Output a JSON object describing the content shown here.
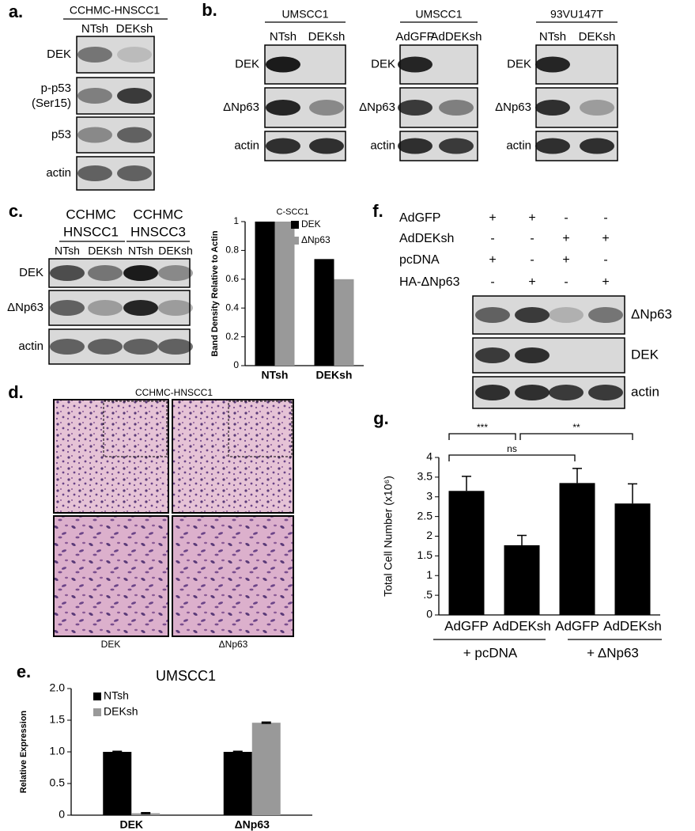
{
  "panels": {
    "a": {
      "label": "a.",
      "title": "CCHMC-HNSCC1",
      "lanes": [
        "NTsh",
        "DEKsh"
      ],
      "rows": [
        {
          "label": "DEK"
        },
        {
          "label": "p-p53",
          "sublabel": "(Ser15)"
        },
        {
          "label": "p53"
        },
        {
          "label": "actin"
        }
      ]
    },
    "b": {
      "label": "b.",
      "blots": [
        {
          "title": "UMSCC1",
          "lanes": [
            "NTsh",
            "DEKsh"
          ],
          "rows": [
            "DEK",
            "ΔNp63",
            "actin"
          ]
        },
        {
          "title": "UMSCC1",
          "lanes": [
            "AdGFP",
            "AdDEKsh"
          ],
          "rows": [
            "DEK",
            "ΔNp63",
            "actin"
          ]
        },
        {
          "title": "93VU147T",
          "lanes": [
            "NTsh",
            "DEKsh"
          ],
          "rows": [
            "DEK",
            "ΔNp63",
            "actin"
          ]
        }
      ]
    },
    "c": {
      "label": "c.",
      "groups": [
        {
          "line1": "CCHMC",
          "line2": "HNSCC1"
        },
        {
          "line1": "CCHMC",
          "line2": "HNSCC3"
        }
      ],
      "lanes": [
        "NTsh",
        "DEKsh",
        "NTsh",
        "DEKsh"
      ],
      "rows": [
        "DEK",
        "ΔNp63",
        "actin"
      ]
    },
    "d": {
      "label": "d.",
      "title": "CCHMC-HNSCC1",
      "captions": [
        "DEK",
        "ΔNp63"
      ]
    },
    "e": {
      "label": "e."
    },
    "f": {
      "label": "f.",
      "conditions": [
        {
          "name": "AdGFP",
          "signs": [
            "+",
            "+",
            "-",
            "-"
          ]
        },
        {
          "name": "AdDEKsh",
          "signs": [
            "-",
            "-",
            "+",
            "+"
          ]
        },
        {
          "name": "pcDNA",
          "signs": [
            "+",
            "-",
            "+",
            "-"
          ]
        },
        {
          "name": "HA-ΔNp63",
          "signs": [
            "-",
            "+",
            "-",
            "+"
          ]
        }
      ],
      "rows": [
        "ΔNp63",
        "DEK",
        "actin"
      ]
    },
    "g": {
      "label": "g."
    }
  },
  "chart_data": [
    {
      "type": "bar",
      "title": "C-SCC1",
      "y_label": "Band Density Relative to Actin",
      "categories": [
        "NTsh",
        "DEKsh"
      ],
      "series": [
        {
          "name": "DEK",
          "color": "#000000",
          "values": [
            1,
            0.74
          ]
        },
        {
          "name": "ΔNp63",
          "color": "#999999",
          "values": [
            1,
            0.6
          ]
        }
      ],
      "ylim": [
        0,
        1
      ],
      "yticks": [
        0,
        0.2,
        0.4,
        0.6,
        0.8,
        1
      ],
      "legend": "upper right"
    },
    {
      "type": "bar",
      "title": "UMSCC1",
      "y_label": "Relative Expression",
      "categories": [
        "DEK",
        "ΔNp63"
      ],
      "series": [
        {
          "name": "NTsh",
          "color": "#000000",
          "values": [
            1.0,
            1.0
          ],
          "errors": [
            0.01,
            0.01
          ]
        },
        {
          "name": "DEKsh",
          "color": "#999999",
          "values": [
            0.03,
            1.46
          ],
          "errors": [
            0.01,
            0.01
          ]
        }
      ],
      "ylim": [
        0,
        2
      ],
      "yticks": [
        0,
        0.5,
        {
          "value": 1,
          "label": "1.0"
        },
        1.5,
        {
          "value": 2,
          "label": "2.0"
        }
      ],
      "legend": "upper left"
    },
    {
      "type": "bar",
      "y_label": "Total Cell Number (x10⁶)",
      "categories": [
        "AdGFP",
        "AdDEKsh",
        "AdGFP",
        "AdDEKsh"
      ],
      "values": [
        3.15,
        1.77,
        3.35,
        2.83
      ],
      "errors": [
        0.37,
        0.25,
        0.37,
        0.5
      ],
      "color": "#000000",
      "ylim": [
        0,
        4
      ],
      "yticks": [
        0,
        {
          "value": 0.5,
          "label": ".5"
        },
        1,
        1.5,
        2,
        2.5,
        3,
        3.5,
        4
      ],
      "groups": [
        "+ pcDNA",
        "+ ΔNp63"
      ],
      "annotations": [
        "***",
        "ns",
        "**"
      ]
    }
  ]
}
